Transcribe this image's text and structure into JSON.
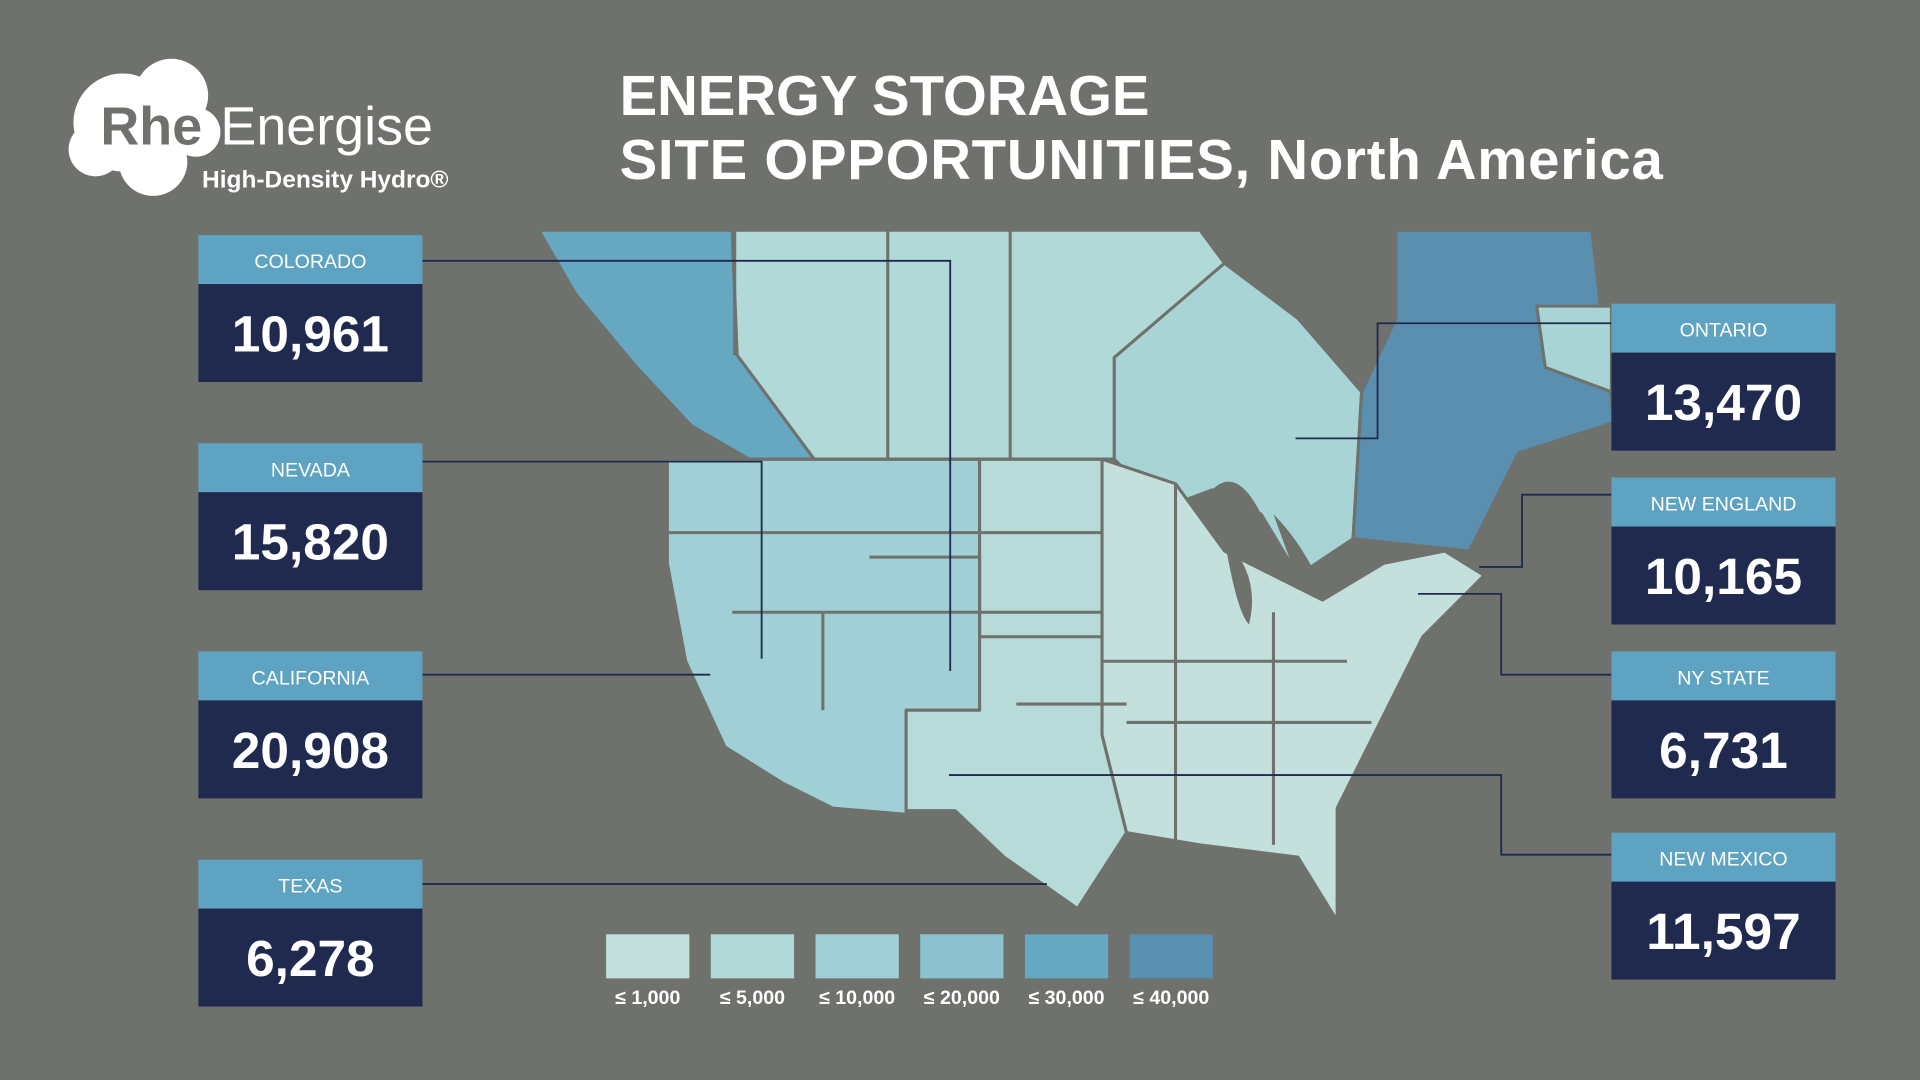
{
  "header": {
    "logo": {
      "mark": "Rhe",
      "name": "Energise",
      "tagline": "High-Density Hydro®"
    },
    "title": [
      "ENERGY STORAGE",
      "SITE OPPORTUNITIES, North America"
    ]
  },
  "regions": [
    {
      "name": "COLORADO",
      "value": "10,961"
    },
    {
      "name": "NEVADA",
      "value": "15,820"
    },
    {
      "name": "CALIFORNIA",
      "value": "20,908"
    },
    {
      "name": "TEXAS",
      "value": "6,278"
    },
    {
      "name": "ONTARIO",
      "value": "13,470"
    },
    {
      "name": "NEW ENGLAND",
      "value": "10,165"
    },
    {
      "name": "NY STATE",
      "value": "6,731"
    },
    {
      "name": "NEW MEXICO",
      "value": "11,597"
    }
  ],
  "legend": [
    {
      "label": "≤ 1,000",
      "color": "#c3e0dc"
    },
    {
      "label": "≤ 5,000",
      "color": "#b1d9d7"
    },
    {
      "label": "≤ 10,000",
      "color": "#a0cfd5"
    },
    {
      "label": "≤ 20,000",
      "color": "#8cc2d0"
    },
    {
      "label": "≤ 30,000",
      "color": "#66a7c2"
    },
    {
      "label": "≤ 40,000",
      "color": "#5a8fb0"
    }
  ]
}
